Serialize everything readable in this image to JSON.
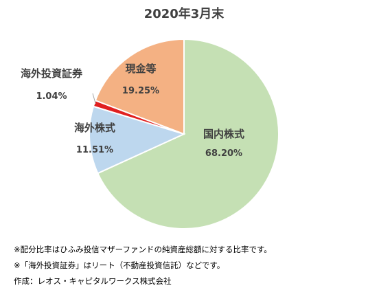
{
  "chart_data": {
    "type": "pie",
    "title": "2020年3月末",
    "slices": [
      {
        "name": "国内株式",
        "value": 68.2,
        "label": "68.20%",
        "color": "#c5e0b4"
      },
      {
        "name": "海外株式",
        "value": 11.51,
        "label": "11.51%",
        "color": "#bdd7ee"
      },
      {
        "name": "海外投資証券",
        "value": 1.04,
        "label": "1.04%",
        "color": "#e02020"
      },
      {
        "name": "現金等",
        "value": 19.25,
        "label": "19.25%",
        "color": "#f4b183"
      }
    ]
  },
  "notes": [
    "※配分比率はひふみ投信マザーファンドの純資産総額に対する比率です。",
    "※「海外投資証券」はリート（不動産投資信託）などです。",
    "作成：レオス・キャピタルワークス株式会社"
  ]
}
